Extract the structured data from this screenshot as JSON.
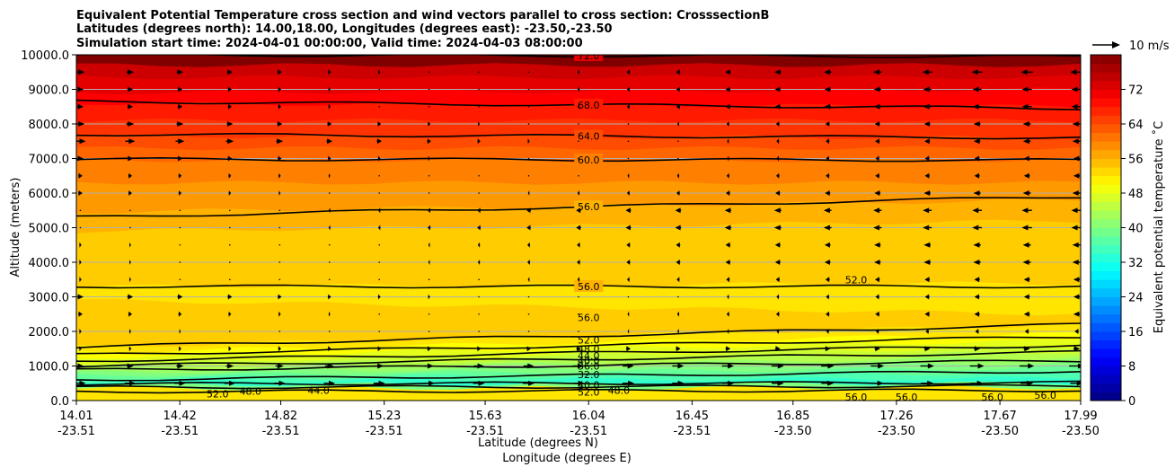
{
  "chart_data": {
    "type": "heatmap",
    "title_lines": [
      "Equivalent Potential Temperature cross section and wind vectors parallel to cross section: CrosssectionB",
      "Latitudes (degrees north): 14.00,18.00, Longitudes (degrees east): -23.50,-23.50",
      "Simulation start time: 2024-04-01 00:00:00, Valid time: 2024-04-03 08:00:00"
    ],
    "xlabel_line1": "Latitude (degrees N)",
    "xlabel_line2": "Longitude (degrees E)",
    "ylabel": "Altitude (meters)",
    "colorbar_label": "Equivalent potential temperature $^\\circ$C",
    "colorbar_label_display": "Equivalent potential temperature ˚C",
    "quiver_key_label": "10 m/s",
    "xlim": [
      14.01,
      17.99
    ],
    "ylim": [
      0,
      10000
    ],
    "x_ticks": [
      {
        "lat": "14.01",
        "lon": "-23.51",
        "value": 14.01
      },
      {
        "lat": "14.42",
        "lon": "-23.51",
        "value": 14.42
      },
      {
        "lat": "14.82",
        "lon": "-23.51",
        "value": 14.82
      },
      {
        "lat": "15.23",
        "lon": "-23.51",
        "value": 15.23
      },
      {
        "lat": "15.63",
        "lon": "-23.51",
        "value": 15.63
      },
      {
        "lat": "16.04",
        "lon": "-23.51",
        "value": 16.04
      },
      {
        "lat": "16.45",
        "lon": "-23.51",
        "value": 16.45
      },
      {
        "lat": "16.85",
        "lon": "-23.50",
        "value": 16.85
      },
      {
        "lat": "17.26",
        "lon": "-23.50",
        "value": 17.26
      },
      {
        "lat": "17.67",
        "lon": "-23.50",
        "value": 17.67
      },
      {
        "lat": "17.99",
        "lon": "-23.50",
        "value": 17.99
      }
    ],
    "y_ticks": [
      {
        "label": "0.0",
        "value": 0
      },
      {
        "label": "1000.0",
        "value": 1000
      },
      {
        "label": "2000.0",
        "value": 2000
      },
      {
        "label": "3000.0",
        "value": 3000
      },
      {
        "label": "4000.0",
        "value": 4000
      },
      {
        "label": "5000.0",
        "value": 5000
      },
      {
        "label": "6000.0",
        "value": 6000
      },
      {
        "label": "7000.0",
        "value": 7000
      },
      {
        "label": "8000.0",
        "value": 8000
      },
      {
        "label": "9000.0",
        "value": 9000
      },
      {
        "label": "10000.0",
        "value": 10000
      }
    ],
    "colorbar_ticks": [
      {
        "label": "0",
        "value": 0
      },
      {
        "label": "8",
        "value": 8
      },
      {
        "label": "16",
        "value": 16
      },
      {
        "label": "24",
        "value": 24
      },
      {
        "label": "32",
        "value": 32
      },
      {
        "label": "40",
        "value": 40
      },
      {
        "label": "48",
        "value": 48
      },
      {
        "label": "56",
        "value": 56
      },
      {
        "label": "64",
        "value": 64
      },
      {
        "label": "72",
        "value": 72
      }
    ],
    "colorbar_range": [
      0,
      80
    ],
    "colorbar_step": 2,
    "grid": "horizontal",
    "legend_position": "top-right",
    "temperature_layers": [
      {
        "value": 80,
        "z_left": 10000,
        "z_right": 10000
      },
      {
        "value": 74,
        "z_left": 9700,
        "z_right": 9700
      },
      {
        "value": 72,
        "z_left": 9350,
        "z_right": 9350
      },
      {
        "value": 70,
        "z_left": 8900,
        "z_right": 9000
      },
      {
        "value": 68,
        "z_left": 8600,
        "z_right": 8500
      },
      {
        "value": 66,
        "z_left": 8100,
        "z_right": 8100
      },
      {
        "value": 64,
        "z_left": 7650,
        "z_right": 7600
      },
      {
        "value": 62,
        "z_left": 7300,
        "z_right": 7300
      },
      {
        "value": 60,
        "z_left": 6950,
        "z_right": 6950
      },
      {
        "value": 58,
        "z_left": 6300,
        "z_right": 6300
      },
      {
        "value": 56,
        "z_left": 5450,
        "z_right": 5800
      },
      {
        "value": 54,
        "z_left": 4900,
        "z_right": 5200
      },
      {
        "value": 52,
        "z_left": 3300,
        "z_right": 3400
      },
      {
        "value": 54,
        "z_left": 2900,
        "z_right": 2500
      },
      {
        "value": 52,
        "z_left": 1550,
        "z_right": 2200
      },
      {
        "value": 50,
        "z_left": 1400,
        "z_right": 1950
      },
      {
        "value": 48,
        "z_left": 1250,
        "z_right": 1750
      },
      {
        "value": 46,
        "z_left": 1100,
        "z_right": 1550
      },
      {
        "value": 44,
        "z_left": 1000,
        "z_right": 1400
      },
      {
        "value": 42,
        "z_left": 900,
        "z_right": 1250
      },
      {
        "value": 40,
        "z_left": 800,
        "z_right": 1100
      },
      {
        "value": 38,
        "z_left": 720,
        "z_right": 950
      },
      {
        "value": 36,
        "z_left": 640,
        "z_right": 800
      },
      {
        "value": 34,
        "z_left": 560,
        "z_right": 650
      },
      {
        "value": 40,
        "z_left": 450,
        "z_right": 500
      },
      {
        "value": 52,
        "z_left": 350,
        "z_right": 380
      },
      {
        "value": 56,
        "z_left": 0,
        "z_right": 0
      }
    ],
    "contours": [
      {
        "value": 72,
        "label": "72.0",
        "z_left": 10000,
        "z_right": 9950
      },
      {
        "value": 68,
        "label": "68.0",
        "z_left": 8650,
        "z_right": 8450
      },
      {
        "value": 64,
        "label": "64.0",
        "z_left": 7700,
        "z_right": 7600
      },
      {
        "value": 60,
        "label": "60.0",
        "z_left": 6980,
        "z_right": 6950
      },
      {
        "value": 56,
        "label": "56.0",
        "z_left": 5300,
        "z_right": 5900
      },
      {
        "value": 56,
        "label": "56.0",
        "z_left": 3300,
        "z_right": 3300
      },
      {
        "value": 52,
        "label": "52.0",
        "z_left": 1550,
        "z_right": 2200
      },
      {
        "value": 48,
        "label": "48.0",
        "z_left": 1320,
        "z_right": 1850
      },
      {
        "value": 44,
        "label": "44.0",
        "z_left": 1150,
        "z_right": 1600
      },
      {
        "value": 40,
        "label": "40.0",
        "z_left": 1000,
        "z_right": 1400
      },
      {
        "value": 36,
        "label": "36.0",
        "z_left": 880,
        "z_right": 1150
      },
      {
        "value": 32,
        "label": "32.0",
        "z_left": 600,
        "z_right": 850
      },
      {
        "value": 40,
        "label": "40.0",
        "z_left": 480,
        "z_right": 520
      },
      {
        "value": 48,
        "label": "48.0",
        "z_left": 380,
        "z_right": 420
      },
      {
        "value": 52,
        "label": "52.0",
        "z_left": 260,
        "z_right": 300
      }
    ],
    "extra_contour_labels": [
      {
        "label": "52.0",
        "lat": 17.1,
        "z": 3500
      },
      {
        "label": "56.0",
        "lat": 16.04,
        "z": 2400
      },
      {
        "label": "52.0",
        "lat": 16.04,
        "z": 1750
      },
      {
        "label": "48.0",
        "lat": 16.04,
        "z": 1500
      },
      {
        "label": "44.0",
        "lat": 16.04,
        "z": 1300
      },
      {
        "label": "40.0",
        "lat": 16.04,
        "z": 1150
      },
      {
        "label": "36.0",
        "lat": 16.04,
        "z": 1000
      },
      {
        "label": "32.0",
        "lat": 16.04,
        "z": 750
      },
      {
        "label": "40.0",
        "lat": 16.04,
        "z": 450
      },
      {
        "label": "52.0",
        "lat": 16.04,
        "z": 250
      },
      {
        "label": "48.0",
        "lat": 16.16,
        "z": 300
      },
      {
        "label": "52.0",
        "lat": 14.57,
        "z": 200
      },
      {
        "label": "48.0",
        "lat": 14.7,
        "z": 270
      },
      {
        "label": "44.0",
        "lat": 14.97,
        "z": 300
      },
      {
        "label": "56.0",
        "lat": 17.1,
        "z": 100
      },
      {
        "label": "56.0",
        "lat": 17.3,
        "z": 100
      },
      {
        "label": "56.0",
        "lat": 17.64,
        "z": 100
      },
      {
        "label": "56.0",
        "lat": 17.85,
        "z": 150
      }
    ],
    "wind_rows": [
      {
        "z": 9500,
        "u_left": 4,
        "u_right": -6
      },
      {
        "z": 9000,
        "u_left": 3,
        "u_right": -5
      },
      {
        "z": 8500,
        "u_left": 3,
        "u_right": -5
      },
      {
        "z": 8000,
        "u_left": 4,
        "u_right": -4
      },
      {
        "z": 7500,
        "u_left": 5,
        "u_right": -4
      },
      {
        "z": 7000,
        "u_left": 3,
        "u_right": -3
      },
      {
        "z": 6500,
        "u_left": 2,
        "u_right": -3
      },
      {
        "z": 6000,
        "u_left": 2,
        "u_right": -4
      },
      {
        "z": 5500,
        "u_left": 0.5,
        "u_right": -5
      },
      {
        "z": 5000,
        "u_left": 0.5,
        "u_right": -5
      },
      {
        "z": 4500,
        "u_left": 1,
        "u_right": -4
      },
      {
        "z": 4000,
        "u_left": 1,
        "u_right": -4
      },
      {
        "z": 3500,
        "u_left": 1,
        "u_right": -3
      },
      {
        "z": 3000,
        "u_left": 3,
        "u_right": -3
      },
      {
        "z": 2500,
        "u_left": 2,
        "u_right": -3
      },
      {
        "z": 2000,
        "u_left": 1,
        "u_right": -2
      },
      {
        "z": 1500,
        "u_left": 1,
        "u_right": 3
      },
      {
        "z": 1000,
        "u_left": 3,
        "u_right": 7
      },
      {
        "z": 500,
        "u_left": 5,
        "u_right": 6
      }
    ]
  }
}
